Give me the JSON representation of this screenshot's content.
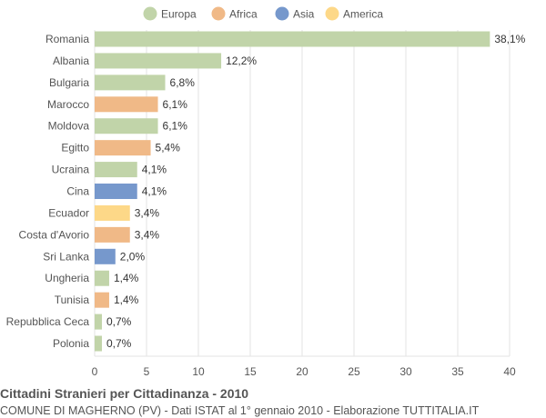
{
  "chart_data": {
    "type": "bar",
    "orientation": "horizontal",
    "title": "Cittadini Stranieri per Cittadinanza - 2010",
    "subtitle": "COMUNE DI MAGHERNO (PV) - Dati ISTAT al 1° gennaio 2010 - Elaborazione TUTTITALIA.IT",
    "categories": [
      "Romania",
      "Albania",
      "Bulgaria",
      "Marocco",
      "Moldova",
      "Egitto",
      "Ucraina",
      "Cina",
      "Ecuador",
      "Costa d'Avorio",
      "Sri Lanka",
      "Ungheria",
      "Tunisia",
      "Repubblica Ceca",
      "Polonia"
    ],
    "values": [
      38.1,
      12.2,
      6.8,
      6.1,
      6.1,
      5.4,
      4.1,
      4.1,
      3.4,
      3.4,
      2.0,
      1.4,
      1.4,
      0.7,
      0.7
    ],
    "labels": [
      "38,1%",
      "12,2%",
      "6,8%",
      "6,1%",
      "6,1%",
      "5,4%",
      "4,1%",
      "4,1%",
      "3,4%",
      "3,4%",
      "2,0%",
      "1,4%",
      "1,4%",
      "0,7%",
      "0,7%"
    ],
    "groups": [
      "Europa",
      "Europa",
      "Europa",
      "Africa",
      "Europa",
      "Africa",
      "Europa",
      "Asia",
      "America",
      "Africa",
      "Asia",
      "Europa",
      "Africa",
      "Europa",
      "Europa"
    ],
    "legend": [
      {
        "name": "Europa",
        "color": "#c1d4a9"
      },
      {
        "name": "Africa",
        "color": "#f0b987"
      },
      {
        "name": "Asia",
        "color": "#7698cc"
      },
      {
        "name": "America",
        "color": "#fdd888"
      }
    ],
    "legend_position": "top",
    "xlim": [
      0,
      40
    ],
    "xticks": [
      0,
      5,
      10,
      15,
      20,
      25,
      30,
      35,
      40
    ],
    "grid": true
  }
}
